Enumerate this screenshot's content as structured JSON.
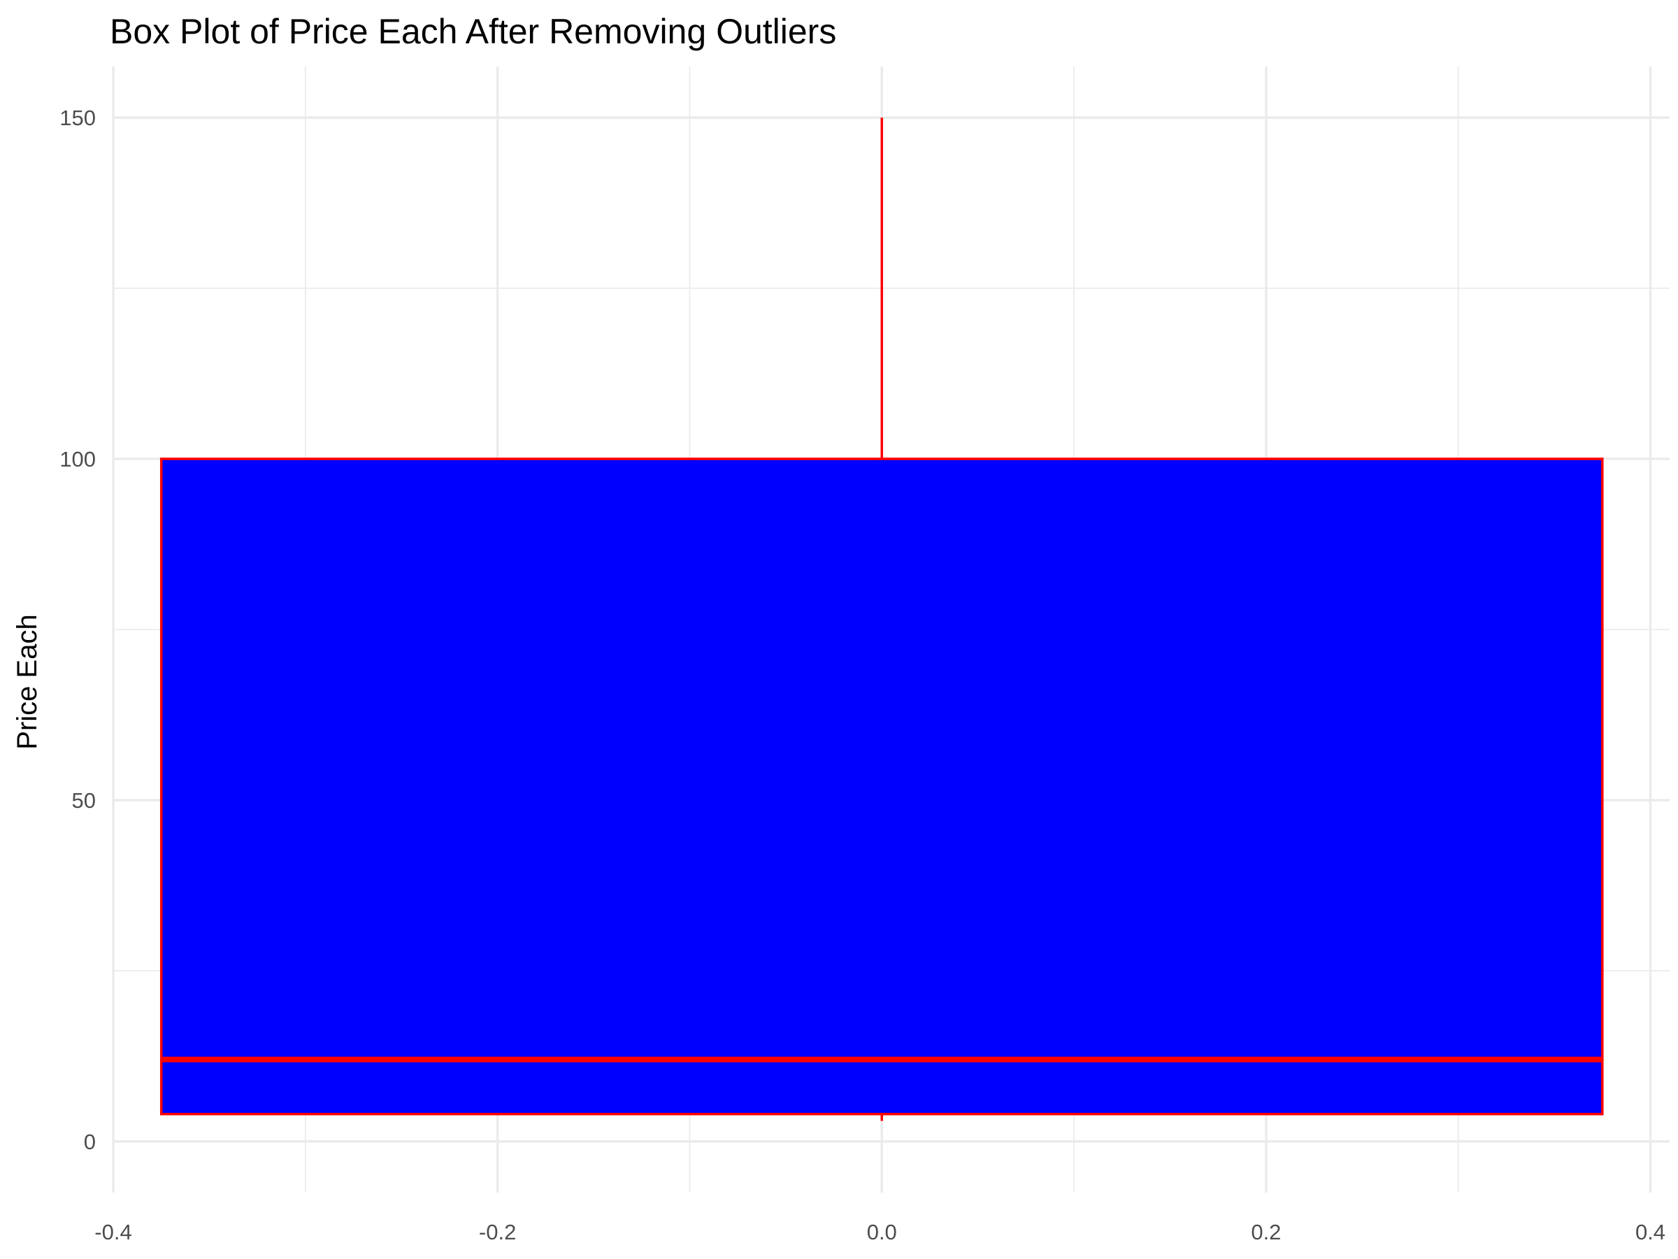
{
  "chart_data": {
    "type": "box",
    "title": "Box Plot of Price Each After Removing Outliers",
    "xlabel": "",
    "ylabel": "Price Each",
    "xlim": [
      -0.4,
      0.41
    ],
    "ylim": [
      -7.5,
      157.5
    ],
    "x_ticks": [
      -0.4,
      -0.2,
      0.0,
      0.2,
      0.4
    ],
    "x_tick_labels": [
      "-0.4",
      "-0.2",
      "0.0",
      "0.2",
      "0.4"
    ],
    "x_minor_ticks": [
      -0.3,
      -0.1,
      0.1,
      0.3
    ],
    "y_ticks": [
      0,
      50,
      100,
      150
    ],
    "y_tick_labels": [
      "0",
      "50",
      "100",
      "150"
    ],
    "y_minor_ticks": [
      25,
      75,
      125
    ],
    "grid": true,
    "legend": "none",
    "box": {
      "x_center": 0.0,
      "x_left": -0.375,
      "x_right": 0.375,
      "whisker_low": 3,
      "q1": 4,
      "median": 12,
      "q3": 100,
      "whisker_high": 150
    },
    "fill_color": "#0000ff",
    "line_color": "#ff0000"
  }
}
